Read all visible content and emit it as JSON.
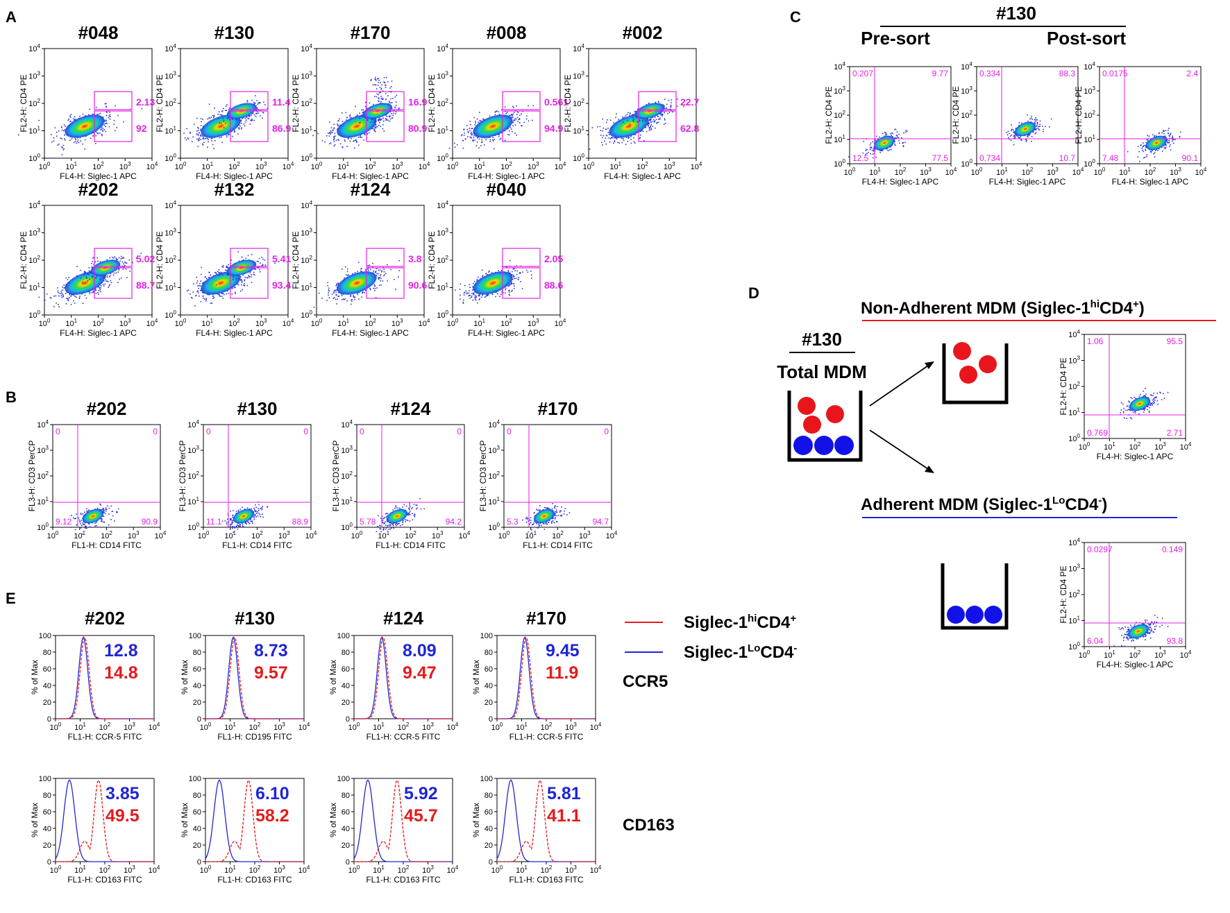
{
  "panel_labels": {
    "A": "A",
    "B": "B",
    "C": "C",
    "D": "D",
    "E": "E"
  },
  "colors": {
    "magenta": "#e61ee6",
    "red": "#e41a1c",
    "blue": "#1f24d6"
  },
  "axes": {
    "fl2_cd4": "FL2-H: CD4 PE",
    "fl4_siglec": "FL4-H: Siglec-1 APC",
    "fl3_cd3": "FL3-H: CD3 PerCP",
    "fl1_cd14": "FL1-H: CD14 FITC",
    "pct_max": "% of Max",
    "ccr5": "FL1-H: CCR-5 FITC",
    "cd195": "FL1-H: CD195 FITC",
    "cd163": "FL1-H: CD163 FITC"
  },
  "panelA": [
    {
      "donor": "#048",
      "upper": "2.13",
      "lower": "92"
    },
    {
      "donor": "#130",
      "upper": "11.4",
      "lower": "86.9"
    },
    {
      "donor": "#170",
      "upper": "16.9",
      "lower": "80.9"
    },
    {
      "donor": "#008",
      "upper": "0.561",
      "lower": "94.9"
    },
    {
      "donor": "#002",
      "upper": "22.7",
      "lower": "62.8"
    },
    {
      "donor": "#202",
      "upper": "5.02",
      "lower": "88.7"
    },
    {
      "donor": "#132",
      "upper": "5.41",
      "lower": "93.4"
    },
    {
      "donor": "#124",
      "upper": "3.8",
      "lower": "90.6"
    },
    {
      "donor": "#040",
      "upper": "2.05",
      "lower": "88.6"
    }
  ],
  "panelB": [
    {
      "donor": "#202",
      "ul": "0",
      "ur": "0",
      "ll": "9.12",
      "lr": "90.9"
    },
    {
      "donor": "#130",
      "ul": "0",
      "ur": "0",
      "ll": "11.1",
      "lr": "88.9"
    },
    {
      "donor": "#124",
      "ul": "0",
      "ur": "0",
      "ll": "5.78",
      "lr": "94.2"
    },
    {
      "donor": "#170",
      "ul": "0",
      "ur": "0",
      "ll": "5.3",
      "lr": "94.7"
    }
  ],
  "panelC": {
    "donor": "#130",
    "presort": "Pre-sort",
    "postsort": "Post-sort",
    "plots": [
      {
        "ul": "0.207",
        "ur": "9.77",
        "ll": "12.5",
        "lr": "77.5"
      },
      {
        "ul": "0.334",
        "ur": "88.3",
        "ll": "0.734",
        "lr": "10.7"
      },
      {
        "ul": "0.0175",
        "ur": "2.4",
        "ll": "7.48",
        "lr": "90.1"
      }
    ]
  },
  "panelD": {
    "donor": "#130",
    "total": "Total MDM",
    "nonadh_pre": "Non-Adherent MDM (Siglec-1",
    "nonadh_sup": "hi",
    "nonadh_post": "CD4",
    "nonadh_sup2": "+",
    "nonadh_end": ")",
    "adh_pre": "Adherent MDM (Siglec-1",
    "adh_sup": "Lo",
    "adh_post": "CD4",
    "adh_sup2": "-",
    "adh_end": ")",
    "plots": [
      {
        "ul": "1.06",
        "ur": "95.5",
        "ll": "0.769",
        "lr": "2.71"
      },
      {
        "ul": "0.0297",
        "ur": "0.149",
        "ll": "6.04",
        "lr": "93.8"
      }
    ]
  },
  "panelE": {
    "donors": [
      "#202",
      "#130",
      "#124",
      "#170"
    ],
    "ccr5_blue": [
      "12.8",
      "8.73",
      "8.09",
      "9.45"
    ],
    "ccr5_red": [
      "14.8",
      "9.57",
      "9.47",
      "11.9"
    ],
    "ccr5_xlabel": [
      "FL1-H: CCR-5 FITC",
      "FL1-H: CD195 FITC",
      "FL1-H: CCR-5 FITC",
      "FL1-H: CCR-5 FITC"
    ],
    "cd163_blue": [
      "3.85",
      "6.10",
      "5.92",
      "5.81"
    ],
    "cd163_red": [
      "49.5",
      "58.2",
      "45.7",
      "41.1"
    ],
    "row1": "CCR5",
    "row2": "CD163",
    "legend_red_pre": "Siglec-1",
    "legend_red_sup": "hi",
    "legend_red_mid": "CD4",
    "legend_red_sup2": "+",
    "legend_blue_pre": "Siglec-1",
    "legend_blue_sup": "Lo",
    "legend_blue_mid": "CD4",
    "legend_blue_sup2": "-"
  }
}
